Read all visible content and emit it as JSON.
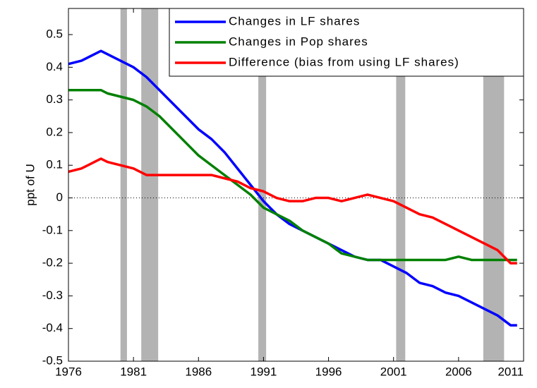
{
  "chart_data": {
    "type": "line",
    "y_label": "ppt of U",
    "x": [
      1976,
      1977,
      1978,
      1978.5,
      1979,
      1980,
      1981,
      1982,
      1983,
      1984,
      1985,
      1986,
      1987,
      1988,
      1989,
      1990,
      1991,
      1992,
      1993,
      1994,
      1995,
      1996,
      1997,
      1998,
      1999,
      2000,
      2001,
      2002,
      2003,
      2004,
      2005,
      2006,
      2007,
      2008,
      2009,
      2010,
      2010.5
    ],
    "series": [
      {
        "name": "Changes in LF shares",
        "color": "#0000ff",
        "values": [
          0.41,
          0.42,
          0.44,
          0.45,
          0.44,
          0.42,
          0.4,
          0.37,
          0.33,
          0.29,
          0.25,
          0.21,
          0.18,
          0.14,
          0.09,
          0.04,
          -0.01,
          -0.05,
          -0.08,
          -0.1,
          -0.12,
          -0.14,
          -0.16,
          -0.18,
          -0.19,
          -0.19,
          -0.21,
          -0.23,
          -0.26,
          -0.27,
          -0.29,
          -0.3,
          -0.32,
          -0.34,
          -0.36,
          -0.39,
          -0.39
        ]
      },
      {
        "name": "Changes in Pop shares",
        "color": "#008000",
        "values": [
          0.33,
          0.33,
          0.33,
          0.33,
          0.32,
          0.31,
          0.3,
          0.28,
          0.25,
          0.21,
          0.17,
          0.13,
          0.1,
          0.07,
          0.04,
          0.01,
          -0.03,
          -0.05,
          -0.07,
          -0.1,
          -0.12,
          -0.14,
          -0.17,
          -0.18,
          -0.19,
          -0.19,
          -0.19,
          -0.19,
          -0.19,
          -0.19,
          -0.19,
          -0.18,
          -0.19,
          -0.19,
          -0.19,
          -0.19,
          -0.19
        ]
      },
      {
        "name": "Difference (bias from using LF shares)",
        "color": "#ff0000",
        "values": [
          0.08,
          0.09,
          0.11,
          0.12,
          0.11,
          0.1,
          0.09,
          0.07,
          0.07,
          0.07,
          0.07,
          0.07,
          0.07,
          0.06,
          0.05,
          0.03,
          0.02,
          0.0,
          -0.01,
          -0.01,
          0.0,
          0.0,
          -0.01,
          0.0,
          0.01,
          0.0,
          -0.01,
          -0.03,
          -0.05,
          -0.06,
          -0.08,
          -0.1,
          -0.12,
          -0.14,
          -0.16,
          -0.2,
          -0.2
        ]
      }
    ],
    "recessions": [
      [
        1980,
        1980.5
      ],
      [
        1981.6,
        1982.9
      ],
      [
        1990.6,
        1991.2
      ],
      [
        2001.2,
        2001.9
      ],
      [
        2007.9,
        2009.5
      ]
    ],
    "recession_color": "#b3b3b3",
    "hline": 0,
    "xlim": [
      1976,
      2011
    ],
    "xticks": [
      1976,
      1981,
      1986,
      1991,
      1996,
      2001,
      2006,
      2011
    ],
    "ylim": [
      -0.5,
      0.58
    ],
    "yticks": [
      -0.5,
      -0.4,
      -0.3,
      -0.2,
      -0.1,
      0,
      0.1,
      0.2,
      0.3,
      0.4,
      0.5
    ],
    "legend": "top-right"
  }
}
